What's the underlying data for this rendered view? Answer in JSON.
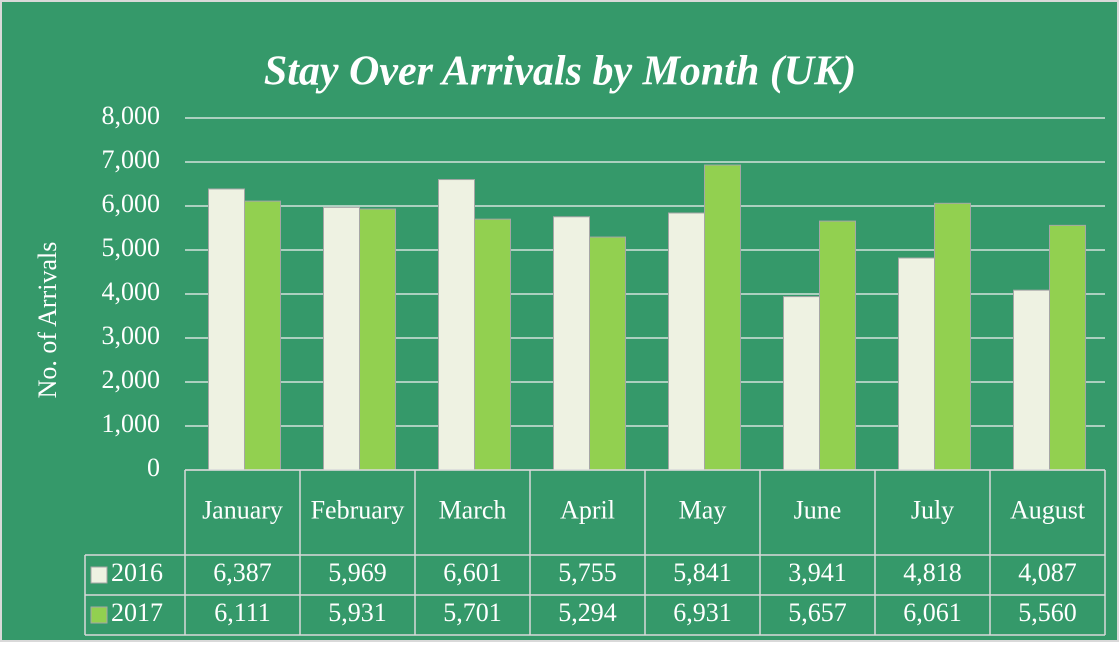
{
  "chart_data": {
    "type": "bar",
    "title": "Stay Over Arrivals by Month (UK)",
    "y_label": "No. of Arrivals",
    "categories": [
      "January",
      "February",
      "March",
      "April",
      "May",
      "June",
      "July",
      "August"
    ],
    "series": [
      {
        "name": "2016",
        "color": "#eef2e2",
        "values": [
          6387,
          5969,
          6601,
          5755,
          5841,
          3941,
          4818,
          4087
        ],
        "value_labels": [
          "6,387",
          "5,969",
          "6,601",
          "5,755",
          "5,841",
          "3,941",
          "4,818",
          "4,087"
        ]
      },
      {
        "name": "2017",
        "color": "#92d050",
        "values": [
          6111,
          5931,
          5701,
          5294,
          6931,
          5657,
          6061,
          5560
        ],
        "value_labels": [
          "6,111",
          "5,931",
          "5,701",
          "5,294",
          "6,931",
          "5,657",
          "6,061",
          "5,560"
        ]
      }
    ],
    "ylim": [
      0,
      8000
    ],
    "yticks": [
      0,
      {
        "value": 1000,
        "label": "1,000"
      },
      {
        "value": 2000,
        "label": "2,000"
      },
      {
        "value": 3000,
        "label": "3,000"
      },
      {
        "value": 4000,
        "label": "4,000"
      },
      {
        "value": 5000,
        "label": "5,000"
      },
      {
        "value": 6000,
        "label": "6,000"
      },
      {
        "value": 7000,
        "label": "7,000"
      },
      {
        "value": 8000,
        "label": "8,000"
      }
    ],
    "grid": true,
    "data_table": true
  }
}
